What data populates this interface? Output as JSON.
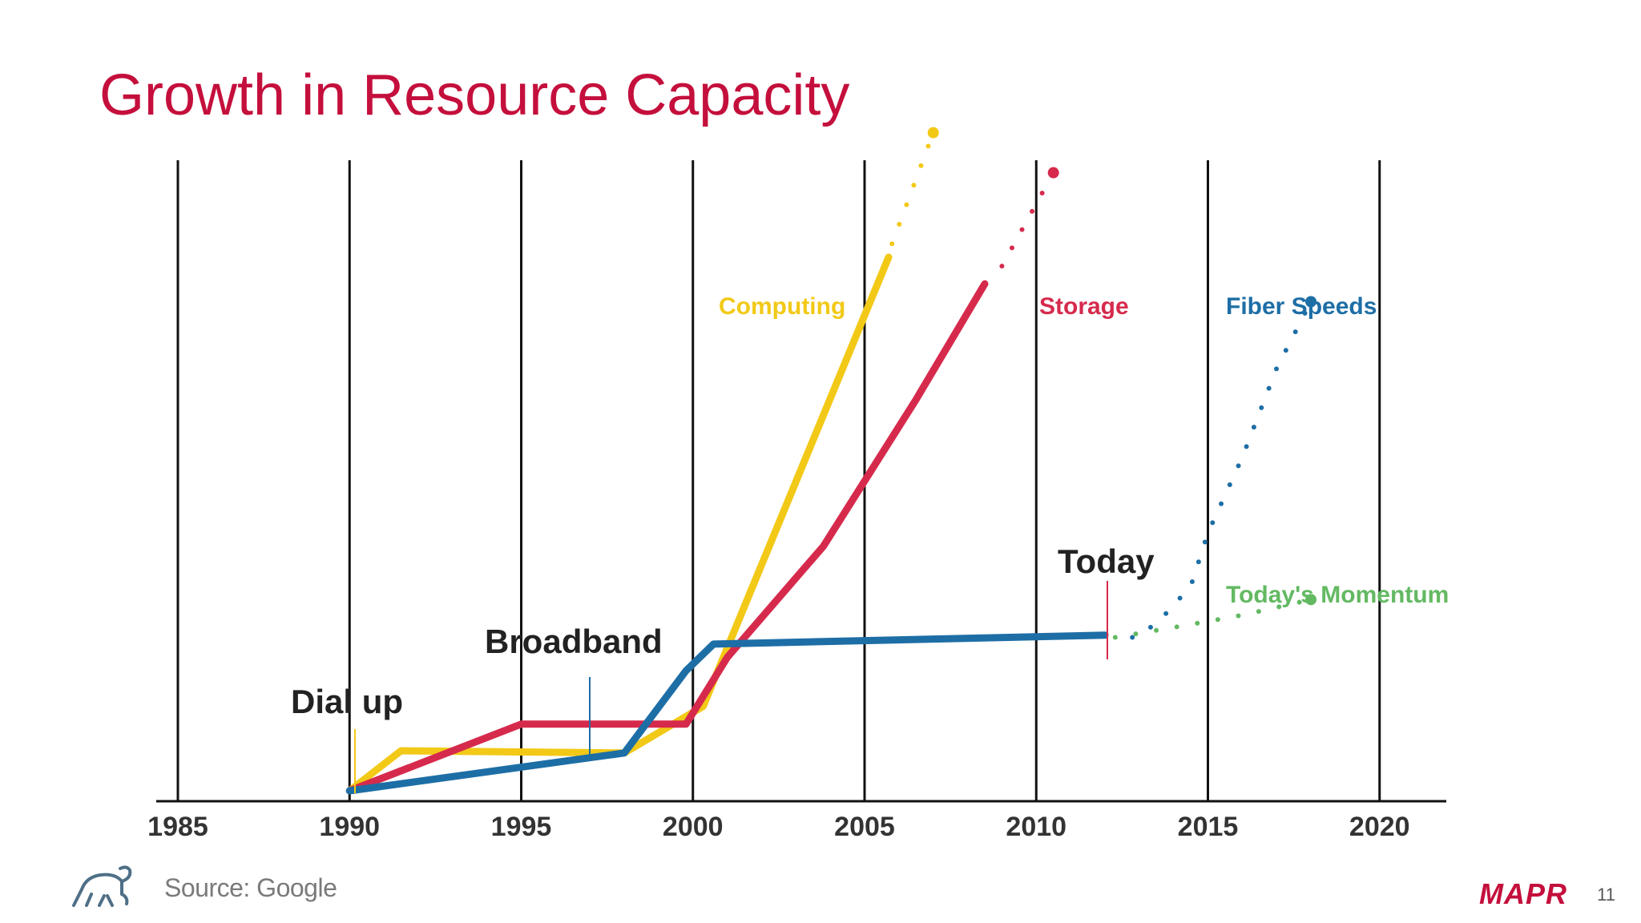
{
  "slide": {
    "title": "Growth in Resource Capacity",
    "source": "Source: Google",
    "brand": "MAPR",
    "page_number": "11"
  },
  "colors": {
    "title": "#c40f3c",
    "computing": "#f2c917",
    "storage": "#d62a4c",
    "fiber": "#1e6ea6",
    "momentum": "#63b962",
    "gridline": "#111111",
    "callout_text": "#222222"
  },
  "chart_data": {
    "type": "line",
    "xlim": [
      1985,
      2021
    ],
    "x_ticks": [
      "1985",
      "1990",
      "1995",
      "2000",
      "2005",
      "2010",
      "2015",
      "2020"
    ],
    "series": [
      {
        "name": "Computing",
        "color": "#f2c917",
        "points": [
          [
            1990,
            0.0
          ],
          [
            1991.5,
            0.9
          ],
          [
            1998,
            0.85
          ],
          [
            2000.3,
            1.9
          ],
          [
            2005.7,
            12.0
          ]
        ],
        "projection": [
          [
            2005.8,
            12.3
          ],
          [
            2007.0,
            14.8
          ]
        ]
      },
      {
        "name": "Storage",
        "color": "#d62a4c",
        "points": [
          [
            1990,
            0.0
          ],
          [
            1995,
            1.5
          ],
          [
            1999.8,
            1.5
          ],
          [
            2001,
            3.0
          ],
          [
            2003.8,
            5.5
          ],
          [
            2006.5,
            8.8
          ],
          [
            2008.5,
            11.4
          ]
        ],
        "projection": [
          [
            2009.0,
            11.8
          ],
          [
            2010.5,
            13.9
          ]
        ]
      },
      {
        "name": "Fiber Speeds",
        "color": "#1e6ea6",
        "points": [
          [
            1990,
            0.0
          ],
          [
            1998,
            0.85
          ],
          [
            1999.8,
            2.7
          ],
          [
            2000.6,
            3.3
          ],
          [
            2012,
            3.5
          ]
        ],
        "projection": [
          [
            2012.8,
            3.45
          ],
          [
            2013.5,
            3.75
          ],
          [
            2014.5,
            4.6
          ],
          [
            2015,
            5.8
          ],
          [
            2016,
            7.5
          ],
          [
            2017,
            9.5
          ],
          [
            2018,
            11.0
          ]
        ]
      },
      {
        "name": "Today's Momentum",
        "color": "#63b962",
        "points": [],
        "projection": [
          [
            2012.3,
            3.45
          ],
          [
            2014.2,
            3.7
          ],
          [
            2016,
            3.95
          ],
          [
            2018,
            4.3
          ]
        ]
      }
    ],
    "annotations": [
      {
        "label": "Dial up",
        "x": 1990
      },
      {
        "label": "Broadband",
        "x": 1997
      },
      {
        "label": "Today",
        "x": 2012
      }
    ]
  }
}
